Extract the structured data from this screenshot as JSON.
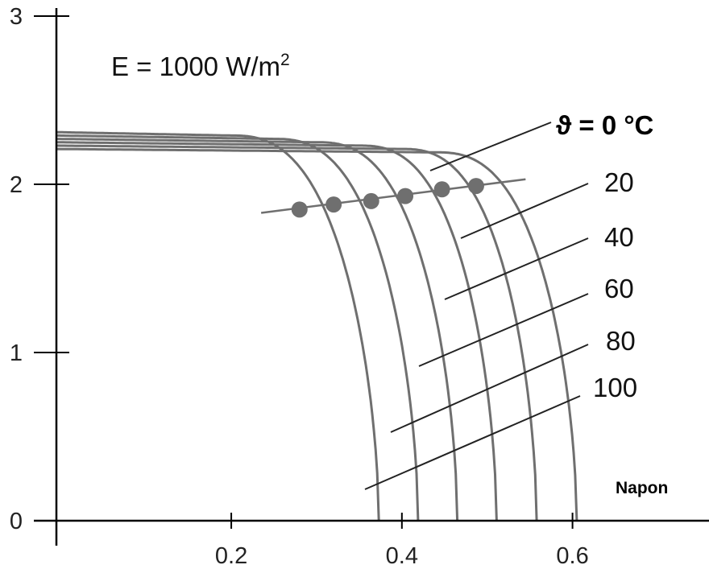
{
  "chart_data": {
    "type": "line",
    "annotation": {
      "prefix": "E = 1000 W/m",
      "superscript": "2"
    },
    "xlabel": "Napon",
    "ylabel": "",
    "xlim": [
      -0.005,
      0.76
    ],
    "ylim": [
      0,
      3
    ],
    "x_ticks": [
      {
        "value": 0.2,
        "label": "0.2"
      },
      {
        "value": 0.4,
        "label": "0.4"
      },
      {
        "value": 0.6,
        "label": "0.6"
      }
    ],
    "y_ticks": [
      {
        "value": 0,
        "label": "0"
      },
      {
        "value": 1,
        "label": "1"
      },
      {
        "value": 2,
        "label": "2"
      },
      {
        "value": 3,
        "label": "3"
      }
    ],
    "legend_title": "ϑ = 0 °C",
    "series": [
      {
        "name": "0",
        "isc": 2.21,
        "voc": 0.605,
        "flat_to": 0.44,
        "mpp": [
          0.487,
          1.99
        ]
      },
      {
        "name": "20",
        "isc": 2.23,
        "voc": 0.558,
        "flat_to": 0.4,
        "mpp": [
          0.447,
          1.97
        ]
      },
      {
        "name": "40",
        "isc": 2.25,
        "voc": 0.511,
        "flat_to": 0.35,
        "mpp": [
          0.404,
          1.93
        ]
      },
      {
        "name": "60",
        "isc": 2.27,
        "voc": 0.465,
        "flat_to": 0.3,
        "mpp": [
          0.364,
          1.9
        ]
      },
      {
        "name": "80",
        "isc": 2.29,
        "voc": 0.419,
        "flat_to": 0.25,
        "mpp": [
          0.32,
          1.88
        ]
      },
      {
        "name": "100",
        "isc": 2.31,
        "voc": 0.373,
        "flat_to": 0.2,
        "mpp": [
          0.28,
          1.85
        ]
      }
    ],
    "mpp_line": [
      [
        0.235,
        1.83
      ],
      [
        0.545,
        2.03
      ]
    ],
    "grid": false
  }
}
